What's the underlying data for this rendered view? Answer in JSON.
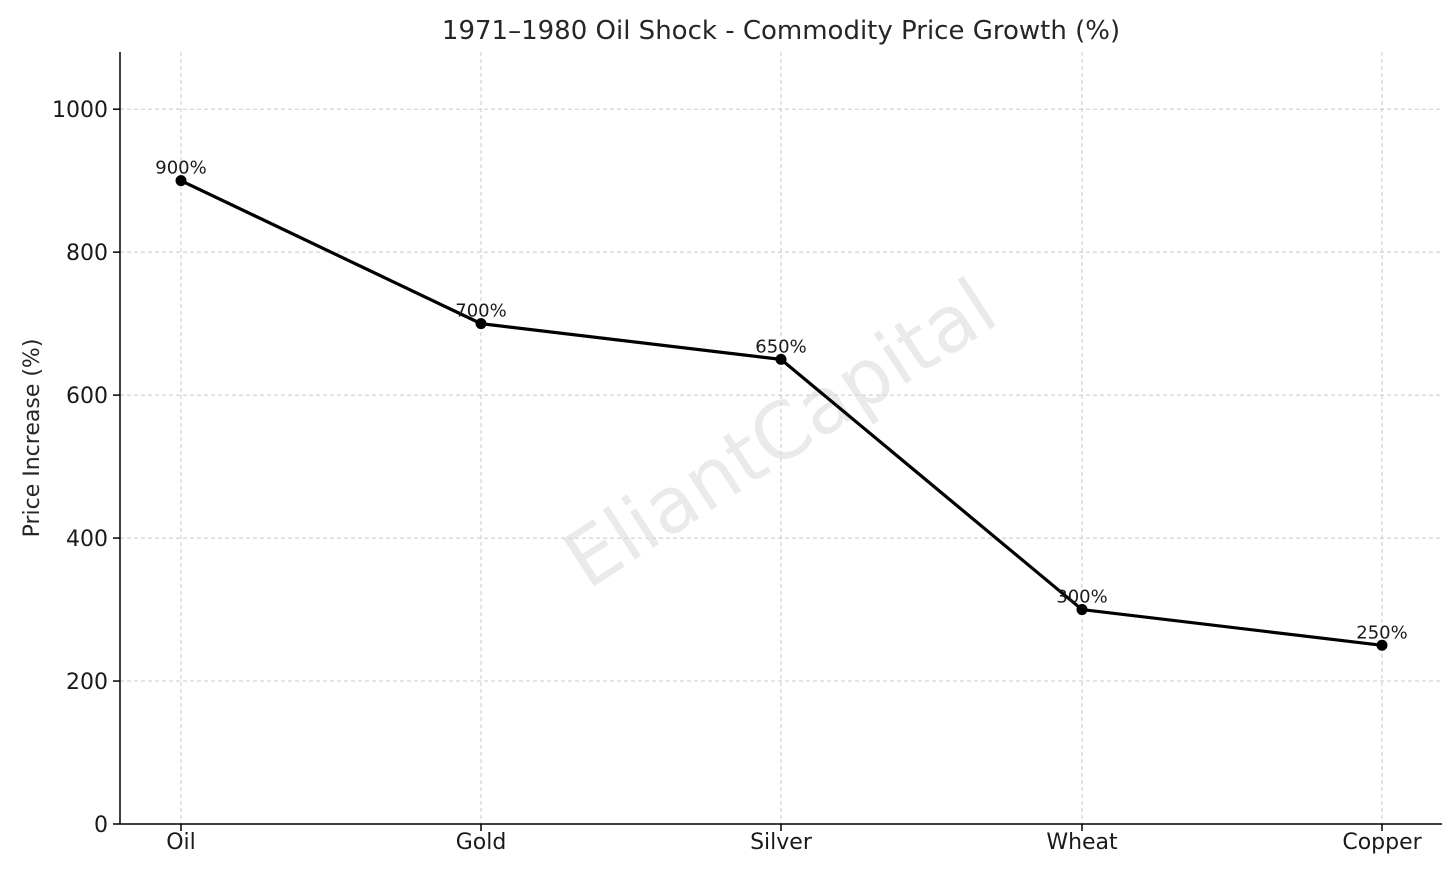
{
  "chart_data": {
    "type": "line",
    "title": "1971–1980 Oil Shock - Commodity Price Growth (%)",
    "xlabel": "",
    "ylabel": "Price Increase (%)",
    "categories": [
      "Oil",
      "Gold",
      "Silver",
      "Wheat",
      "Copper"
    ],
    "values": [
      900,
      700,
      650,
      300,
      250
    ],
    "data_labels": [
      "900%",
      "700%",
      "650%",
      "300%",
      "250%"
    ],
    "ylim": [
      0,
      1080
    ],
    "yticks": [
      0,
      200,
      400,
      600,
      800,
      1000
    ],
    "ytick_labels": [
      "0",
      "200",
      "400",
      "600",
      "800",
      "1000"
    ],
    "grid": true,
    "line_color": "#000000",
    "marker_color": "#000000"
  },
  "watermark": "EliantCapital"
}
